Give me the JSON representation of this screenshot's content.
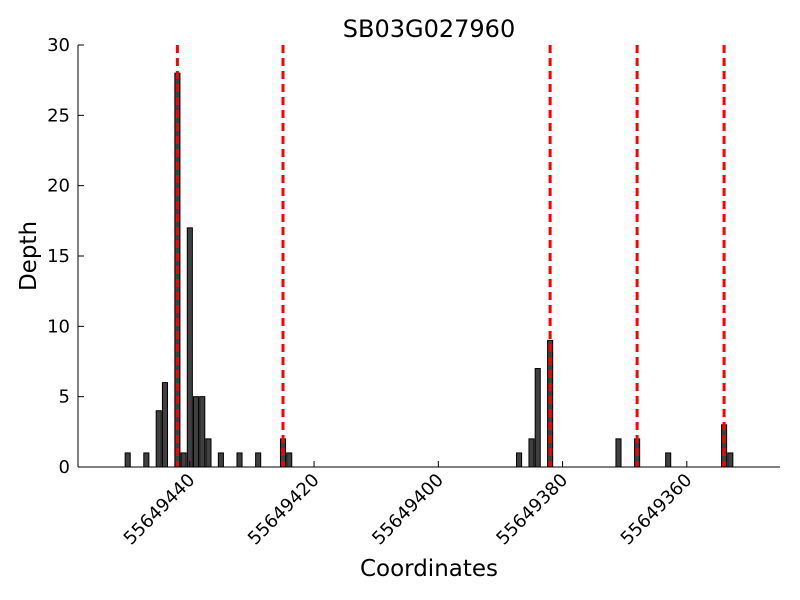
{
  "chart_data": {
    "type": "bar",
    "title": "SB03G027960",
    "xlabel": "Coordinates",
    "ylabel": "Depth",
    "x_axis_reversed": true,
    "xlim": [
      55649458,
      55649345
    ],
    "ylim": [
      0,
      30
    ],
    "x_ticks": [
      55649440,
      55649420,
      55649400,
      55649380,
      55649360
    ],
    "x_tick_labels": [
      "55649440",
      "55649420",
      "55649400",
      "55649380",
      "55649360"
    ],
    "y_ticks": [
      0,
      5,
      10,
      15,
      20,
      25,
      30
    ],
    "y_tick_labels": [
      "0",
      "5",
      "10",
      "15",
      "20",
      "25",
      "30"
    ],
    "bar_color": "#404040",
    "bar_edge_color": "#000000",
    "bars": [
      {
        "x": 55649450,
        "depth": 1
      },
      {
        "x": 55649447,
        "depth": 1
      },
      {
        "x": 55649445,
        "depth": 4
      },
      {
        "x": 55649444,
        "depth": 6
      },
      {
        "x": 55649442,
        "depth": 28
      },
      {
        "x": 55649441,
        "depth": 1
      },
      {
        "x": 55649440,
        "depth": 17
      },
      {
        "x": 55649439,
        "depth": 5
      },
      {
        "x": 55649438,
        "depth": 5
      },
      {
        "x": 55649437,
        "depth": 2
      },
      {
        "x": 55649435,
        "depth": 1
      },
      {
        "x": 55649432,
        "depth": 1
      },
      {
        "x": 55649429,
        "depth": 1
      },
      {
        "x": 55649425,
        "depth": 2
      },
      {
        "x": 55649424,
        "depth": 1
      },
      {
        "x": 55649387,
        "depth": 1
      },
      {
        "x": 55649385,
        "depth": 2
      },
      {
        "x": 55649384,
        "depth": 7
      },
      {
        "x": 55649382,
        "depth": 9
      },
      {
        "x": 55649371,
        "depth": 2
      },
      {
        "x": 55649368,
        "depth": 2
      },
      {
        "x": 55649363,
        "depth": 1
      },
      {
        "x": 55649354,
        "depth": 3
      },
      {
        "x": 55649353,
        "depth": 1
      }
    ],
    "reference_lines": {
      "color": "#ff0000",
      "style": "dashed",
      "x": [
        55649442,
        55649425,
        55649382,
        55649368,
        55649354
      ]
    }
  }
}
